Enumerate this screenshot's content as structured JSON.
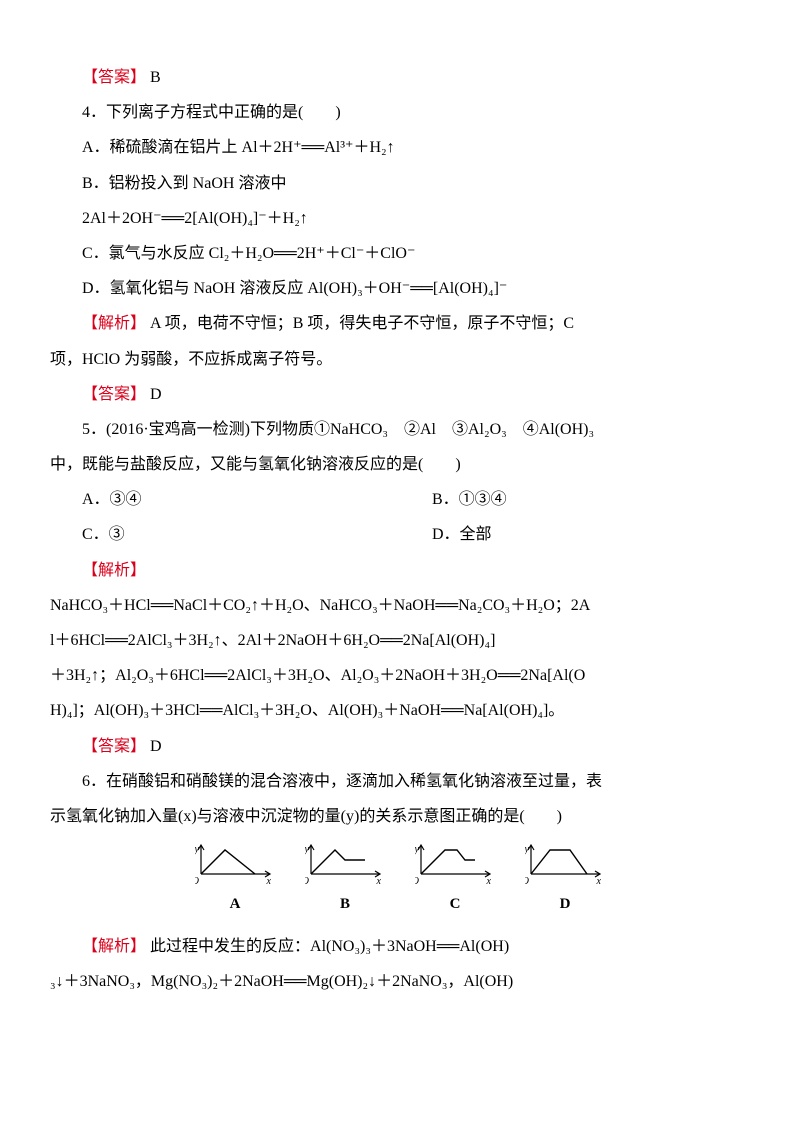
{
  "q3": {
    "answer_label": "【答案】",
    "answer_letter": "B"
  },
  "q4": {
    "stem": "4．下列离子方程式中正确的是(　　)",
    "optA": "A．稀硫酸滴在铝片上 Al＋2H⁺══Al³⁺＋H₂↑",
    "optB_l1": "B．铝粉投入到 NaOH 溶液中",
    "optB_l2": "2Al＋2OH⁻══2[Al(OH)₄]⁻＋H₂↑",
    "optC": "C．氯气与水反应 Cl₂＋H₂O══2H⁺＋Cl⁻＋ClO⁻",
    "optD": "D．氢氧化铝与 NaOH 溶液反应 Al(OH)₃＋OH⁻══[Al(OH)₄]⁻",
    "analysis_label": "【解析】",
    "analysis_l1": "A 项，电荷不守恒；B 项，得失电子不守恒，原子不守恒；C",
    "analysis_l2": "项，HClO 为弱酸，不应拆成离子符号。",
    "answer_label": "【答案】",
    "answer_letter": "D"
  },
  "q5": {
    "stem_l1": "5．(2016·宝鸡高一检测)下列物质①NaHCO₃　②Al　③Al₂O₃　④Al(OH)₃",
    "stem_l2": "中，既能与盐酸反应，又能与氢氧化钠溶液反应的是(　　)",
    "optA": "A．③④",
    "optB": "B．①③④",
    "optC": "C．③",
    "optD": "D．全部",
    "analysis_label": "【解析】",
    "analysis_l1": "NaHCO₃＋HCl══NaCl＋CO₂↑＋H₂O、NaHCO₃＋NaOH══Na₂CO₃＋H₂O；2A",
    "analysis_l2": "l＋6HCl══2AlCl₃＋3H₂↑、2Al＋2NaOH＋6H₂O══2Na[Al(OH)₄]",
    "analysis_l3": "＋3H₂↑；Al₂O₃＋6HCl══2AlCl₃＋3H₂O、Al₂O₃＋2NaOH＋3H₂O══2Na[Al(O",
    "analysis_l4": "H)₄]；Al(OH)₃＋3HCl══AlCl₃＋3H₂O、Al(OH)₃＋NaOH══Na[Al(OH)₄]。",
    "answer_label": "【答案】",
    "answer_letter": "D"
  },
  "q6": {
    "stem_l1": "6．在硝酸铝和硝酸镁的混合溶液中，逐滴加入稀氢氧化钠溶液至过量，表",
    "stem_l2": "示氢氧化钠加入量(x)与溶液中沉淀物的量(y)的关系示意图正确的是(　　)",
    "graphs": {
      "axis_color": "#000000",
      "line_color": "#000000",
      "y_label": "y",
      "x_label": "x",
      "o_label": "O",
      "items": [
        {
          "label": "A",
          "points": [
            [
              6,
              32
            ],
            [
              30,
              8
            ],
            [
              60,
              32
            ]
          ]
        },
        {
          "label": "B",
          "points": [
            [
              6,
              32
            ],
            [
              30,
              8
            ],
            [
              40,
              18
            ],
            [
              60,
              18
            ]
          ]
        },
        {
          "label": "C",
          "points": [
            [
              6,
              32
            ],
            [
              30,
              8
            ],
            [
              42,
              8
            ],
            [
              50,
              18
            ],
            [
              60,
              18
            ]
          ]
        },
        {
          "label": "D",
          "points": [
            [
              6,
              32
            ],
            [
              25,
              8
            ],
            [
              45,
              8
            ],
            [
              62,
              32
            ]
          ]
        }
      ]
    },
    "analysis_label": "【解析】",
    "analysis_l1": "此过程中发生的反应：Al(NO₃)₃＋3NaOH══Al(OH)",
    "analysis_l2": "₃↓＋3NaNO₃，Mg(NO₃)₂＋2NaOH══Mg(OH)₂↓＋2NaNO₃，Al(OH)"
  }
}
